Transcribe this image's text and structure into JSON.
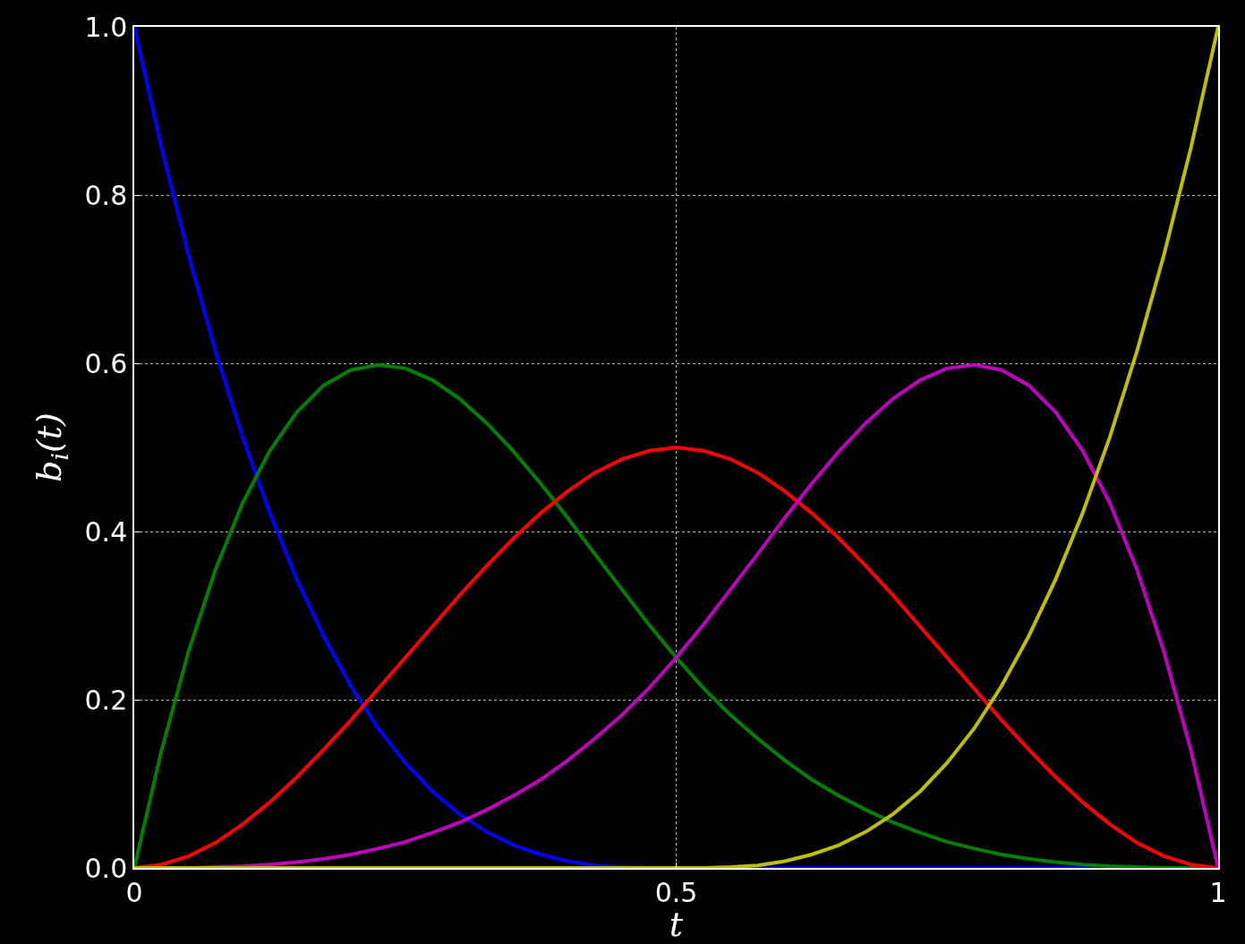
{
  "chart_data": {
    "type": "line",
    "xlabel": "t",
    "ylabel": "b$_{i}$(t)",
    "x": [
      0,
      0.025,
      0.05,
      0.075,
      0.1,
      0.125,
      0.15,
      0.175,
      0.2,
      0.225,
      0.25,
      0.275,
      0.3,
      0.325,
      0.35,
      0.375,
      0.4,
      0.425,
      0.45,
      0.475,
      0.5,
      0.525,
      0.55,
      0.575,
      0.6,
      0.625,
      0.65,
      0.675,
      0.7,
      0.725,
      0.75,
      0.775,
      0.8,
      0.825,
      0.85,
      0.875,
      0.9,
      0.925,
      0.95,
      0.975,
      1
    ],
    "series": [
      {
        "color": "#0000ff",
        "values": [
          1,
          0.857,
          0.729,
          0.614,
          0.512,
          0.422,
          0.343,
          0.275,
          0.216,
          0.166,
          0.125,
          0.091,
          0.064,
          0.043,
          0.027,
          0.016,
          0.008,
          0.003,
          0.001,
          0,
          0,
          0,
          0,
          0,
          0,
          0,
          0,
          0,
          0,
          0,
          0,
          0,
          0,
          0,
          0,
          0,
          0,
          0,
          null,
          null,
          null
        ]
      },
      {
        "color": "#008000",
        "values": [
          0,
          0.139,
          0.257,
          0.355,
          0.434,
          0.496,
          0.542,
          0.574,
          0.592,
          0.598,
          0.594,
          0.58,
          0.558,
          0.529,
          0.495,
          0.457,
          0.416,
          0.373,
          0.331,
          0.289,
          0.25,
          0.214,
          0.182,
          0.154,
          0.128,
          0.105,
          0.086,
          0.069,
          0.054,
          0.042,
          0.031,
          0.023,
          0.016,
          0.011,
          0.007,
          0.004,
          0.002,
          0.001,
          0,
          0,
          0
        ]
      },
      {
        "color": "#ff0000",
        "values": [
          0,
          0.004,
          0.014,
          0.03,
          0.052,
          0.078,
          0.108,
          0.141,
          0.176,
          0.213,
          0.25,
          0.287,
          0.324,
          0.359,
          0.392,
          0.422,
          0.448,
          0.47,
          0.486,
          0.496,
          0.5,
          0.496,
          0.486,
          0.47,
          0.448,
          0.422,
          0.392,
          0.359,
          0.324,
          0.287,
          0.25,
          0.213,
          0.176,
          0.141,
          0.108,
          0.078,
          0.052,
          0.03,
          0.014,
          0.004,
          0
        ]
      },
      {
        "color": "#bf00bf",
        "values": [
          0,
          0,
          0,
          0.001,
          0.002,
          0.004,
          0.007,
          0.011,
          0.016,
          0.023,
          0.031,
          0.042,
          0.054,
          0.069,
          0.086,
          0.105,
          0.128,
          0.154,
          0.182,
          0.214,
          0.25,
          0.289,
          0.331,
          0.373,
          0.416,
          0.457,
          0.495,
          0.529,
          0.558,
          0.58,
          0.594,
          0.598,
          0.592,
          0.574,
          0.542,
          0.496,
          0.434,
          0.355,
          0.257,
          0.139,
          0
        ]
      },
      {
        "color": "#bfbf00",
        "values": [
          0,
          0,
          0,
          0,
          0,
          0,
          0,
          0,
          0,
          0,
          0,
          0,
          0,
          0,
          0,
          0,
          0,
          0,
          0,
          0,
          0,
          0,
          0.001,
          0.003,
          0.008,
          0.016,
          0.027,
          0.043,
          0.064,
          0.091,
          0.125,
          0.166,
          0.216,
          0.275,
          0.343,
          0.422,
          0.512,
          0.614,
          0.729,
          0.857,
          1
        ]
      }
    ],
    "xlim": [
      0,
      1
    ],
    "ylim": [
      0,
      1
    ],
    "xticks": [
      0,
      0.5,
      1
    ],
    "yticks": [
      {
        "value": 0,
        "label": "0.0"
      },
      {
        "value": 0.2,
        "label": "0.2"
      },
      {
        "value": 0.4,
        "label": "0.4"
      },
      {
        "value": 0.6,
        "label": "0.6"
      },
      {
        "value": 0.8,
        "label": "0.8"
      },
      {
        "value": 1,
        "label": "1.0"
      }
    ],
    "grid": true,
    "marker": "none",
    "line_style": "solid"
  }
}
